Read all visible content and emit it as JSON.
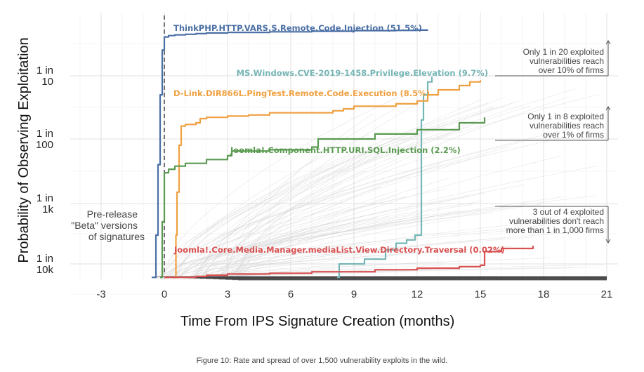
{
  "chart_data": {
    "type": "line",
    "xlabel": "Time From IPS Signature Creation (months)",
    "ylabel": "Probability of Observing Exploitation",
    "x_ticks": [
      -3,
      0,
      3,
      6,
      9,
      12,
      15,
      18,
      21
    ],
    "xlim": [
      -4.5,
      21.5
    ],
    "y_ticks": [
      {
        "value": 0.0001,
        "line1": "1 in",
        "line2": "10k"
      },
      {
        "value": 0.001,
        "line1": "1 in",
        "line2": "1k"
      },
      {
        "value": 0.01,
        "line1": "1 in",
        "line2": "100"
      },
      {
        "value": 0.1,
        "line1": "1 in",
        "line2": "10"
      }
    ],
    "y_scale": "log",
    "ylim": [
      5.5e-05,
      1.0
    ],
    "grid": true,
    "reference_line_x": 0,
    "series": [
      {
        "name": "ThinkPHP.HTTP.VARS.S.Remote.Code.Injection (51.5%)",
        "color": "#4a6fa5",
        "x": [
          -0.6,
          -0.4,
          -0.3,
          -0.2,
          -0.1,
          0.0,
          0.2,
          0.5,
          1.0,
          1.5,
          2.0,
          3.0,
          5.0,
          7.0,
          9.0,
          11.0,
          12.0,
          12.5
        ],
        "y": [
          6e-05,
          0.0003,
          0.004,
          0.05,
          0.25,
          0.4,
          0.42,
          0.43,
          0.44,
          0.45,
          0.46,
          0.47,
          0.48,
          0.49,
          0.5,
          0.505,
          0.51,
          0.515
        ]
      },
      {
        "name": "MS.Windows.CVE-2019-1458.Privilege.Elevation (9.7%)",
        "color": "#76b5b5",
        "x": [
          8.2,
          8.3,
          9.5,
          10.5,
          11.0,
          11.5,
          11.9,
          12.1,
          12.2,
          12.3,
          12.5,
          12.7
        ],
        "y": [
          6e-05,
          0.0001,
          0.00012,
          0.00017,
          0.00022,
          0.00025,
          0.0003,
          0.0003,
          0.02,
          0.05,
          0.08,
          0.097
        ]
      },
      {
        "name": "D-Link.DIR866L.PingTest.Remote.Code.Execution (8.5%)",
        "color": "#f0a040",
        "x": [
          0.5,
          0.55,
          0.6,
          0.7,
          0.8,
          1.0,
          1.5,
          1.7,
          2.0,
          3.0,
          4.0,
          5.0,
          8.0,
          8.5,
          9.0,
          11.0,
          12.0,
          12.5,
          13.0,
          14.0,
          14.5,
          15.0
        ],
        "y": [
          6e-05,
          0.0003,
          0.0015,
          0.008,
          0.016,
          0.017,
          0.018,
          0.021,
          0.022,
          0.023,
          0.024,
          0.026,
          0.028,
          0.03,
          0.033,
          0.036,
          0.04,
          0.05,
          0.06,
          0.07,
          0.08,
          0.085
        ]
      },
      {
        "name": "Joomla!.Component.HTTP.URI.SQL.Injection (2.2%)",
        "color": "#5a9a50",
        "x": [
          -0.2,
          -0.1,
          0.0,
          0.2,
          0.5,
          1.0,
          2.0,
          3.0,
          3.2,
          5.0,
          7.0,
          7.3,
          10.0,
          12.0,
          14.0,
          15.2
        ],
        "y": [
          6e-05,
          0.0005,
          0.003,
          0.0034,
          0.0038,
          0.0042,
          0.0048,
          0.0055,
          0.0065,
          0.0068,
          0.0075,
          0.01,
          0.012,
          0.014,
          0.018,
          0.022
        ]
      },
      {
        "name": "Joomla!.Core.Media.Manager.mediaList.View.Directory.Traversal (0.02%)",
        "color": "#d95050",
        "x": [
          0.0,
          1.5,
          2.0,
          3.0,
          5.0,
          7.0,
          10.0,
          12.0,
          14.0,
          15.0,
          15.2,
          16.0,
          17.5
        ],
        "y": [
          6e-05,
          6.2e-05,
          6.5e-05,
          6.8e-05,
          7e-05,
          7.4e-05,
          8e-05,
          8.5e-05,
          9e-05,
          9.5e-05,
          0.00016,
          0.00018,
          0.0002
        ]
      }
    ],
    "annotations": [
      {
        "line1": "Only 1 in 20 exploited",
        "line2": "vulnerabilities reach",
        "line3": "over 10% of firms"
      },
      {
        "line1": "Only 1 in 8 exploited",
        "line2": "vulnerabilities reach",
        "line3": "over 1% of firms"
      },
      {
        "line1": "3 out of 4 exploited",
        "line2": "vulnerabilities don't reach",
        "line3": "more than 1 in 1,000 firms"
      }
    ],
    "beta_note": {
      "line1": "Pre-release",
      "line2": "\"Beta\" versions",
      "line3": "of signatures"
    }
  },
  "caption": "Figure 10: Rate and spread of over 1,500 vulnerability exploits in the wild."
}
